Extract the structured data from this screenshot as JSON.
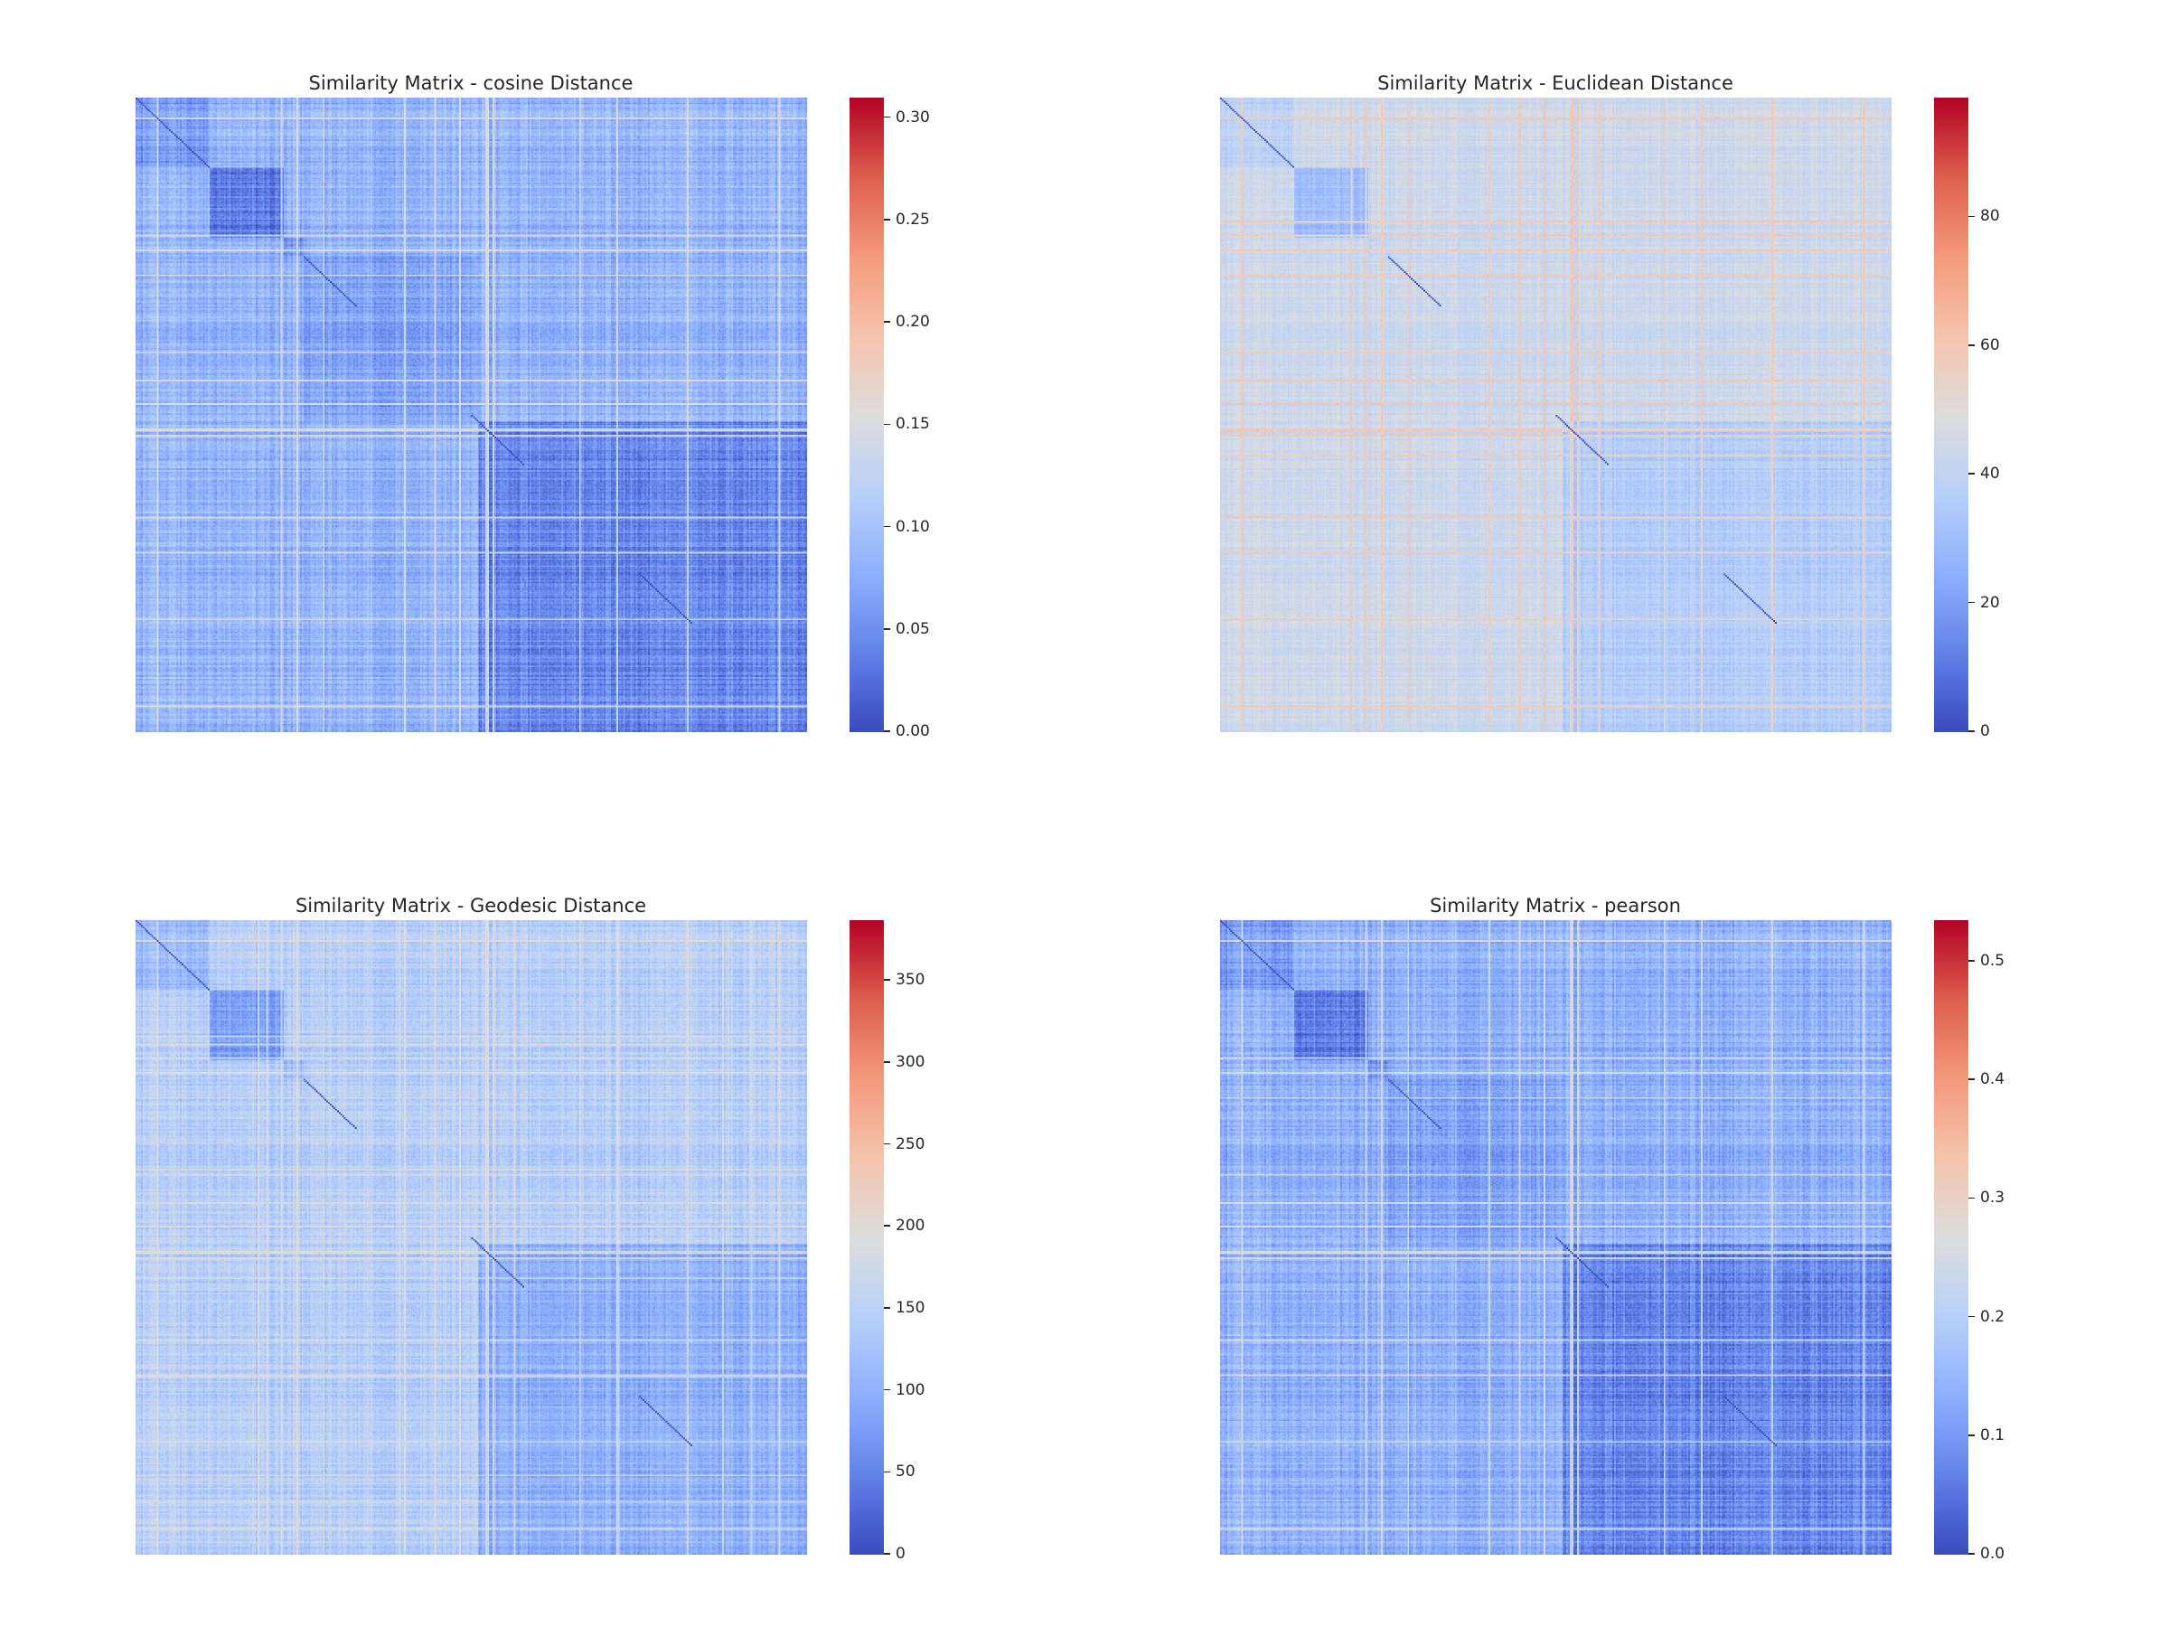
{
  "chart_data": [
    {
      "type": "heatmap",
      "title": "Similarity Matrix - cosine Distance",
      "colormap": "coolwarm",
      "vmin": 0.0,
      "vmax": 0.31,
      "colorbar_ticks": [
        "0.00",
        "0.05",
        "0.10",
        "0.15",
        "0.20",
        "0.25",
        "0.30"
      ],
      "colorbar_tick_values": [
        0.0,
        0.05,
        0.1,
        0.15,
        0.2,
        0.25,
        0.3
      ],
      "xlabel": "",
      "ylabel": "",
      "axis_ticks_visible": false,
      "matrix_structure": {
        "block_boundaries": [
          0.0,
          0.11,
          0.22,
          0.25,
          0.51,
          1.0
        ],
        "block_means": [
          0.06,
          0.035,
          0.06,
          0.07,
          0.045
        ],
        "background_mean": 0.085,
        "noise": 0.02,
        "hot_line_fraction": 0.03,
        "hot_line_value": 0.2,
        "diagonal_value": 0.0
      }
    },
    {
      "type": "heatmap",
      "title": "Similarity Matrix - Euclidean Distance",
      "colormap": "coolwarm",
      "vmin": 0,
      "vmax": 98.6,
      "colorbar_ticks": [
        "0",
        "20",
        "40",
        "60",
        "80"
      ],
      "colorbar_tick_values": [
        0,
        20,
        40,
        60,
        80
      ],
      "xlabel": "",
      "ylabel": "",
      "axis_ticks_visible": false,
      "matrix_structure": {
        "block_boundaries": [
          0.0,
          0.11,
          0.22,
          0.25,
          0.51,
          1.0
        ],
        "block_means": [
          38,
          30,
          42,
          44,
          36
        ],
        "background_mean": 44,
        "noise": 4,
        "hot_line_fraction": 0.035,
        "hot_line_value": 72,
        "diagonal_value": 0
      }
    },
    {
      "type": "heatmap",
      "title": "Similarity Matrix - Geodesic Distance",
      "colormap": "coolwarm",
      "vmin": 0,
      "vmax": 387,
      "colorbar_ticks": [
        "0",
        "50",
        "100",
        "150",
        "200",
        "250",
        "300",
        "350"
      ],
      "colorbar_tick_values": [
        0,
        50,
        100,
        150,
        200,
        250,
        300,
        350
      ],
      "xlabel": "",
      "ylabel": "",
      "axis_ticks_visible": false,
      "matrix_structure": {
        "block_boundaries": [
          0.0,
          0.11,
          0.22,
          0.25,
          0.51,
          1.0
        ],
        "block_means": [
          110,
          80,
          120,
          150,
          100
        ],
        "background_mean": 145,
        "noise": 22,
        "hot_line_fraction": 0.05,
        "hot_line_value": 220,
        "diagonal_value": 0
      }
    },
    {
      "type": "heatmap",
      "title": "Similarity Matrix - pearson",
      "colormap": "coolwarm",
      "vmin": 0.0,
      "vmax": 0.535,
      "colorbar_ticks": [
        "0.0",
        "0.1",
        "0.2",
        "0.3",
        "0.4",
        "0.5"
      ],
      "colorbar_tick_values": [
        0.0,
        0.1,
        0.2,
        0.3,
        0.4,
        0.5
      ],
      "xlabel": "",
      "ylabel": "",
      "axis_ticks_visible": false,
      "matrix_structure": {
        "block_boundaries": [
          0.0,
          0.11,
          0.22,
          0.25,
          0.51,
          1.0
        ],
        "block_means": [
          0.1,
          0.06,
          0.1,
          0.12,
          0.075
        ],
        "background_mean": 0.14,
        "noise": 0.035,
        "hot_line_fraction": 0.03,
        "hot_line_value": 0.33,
        "diagonal_value": 0.0
      }
    }
  ]
}
